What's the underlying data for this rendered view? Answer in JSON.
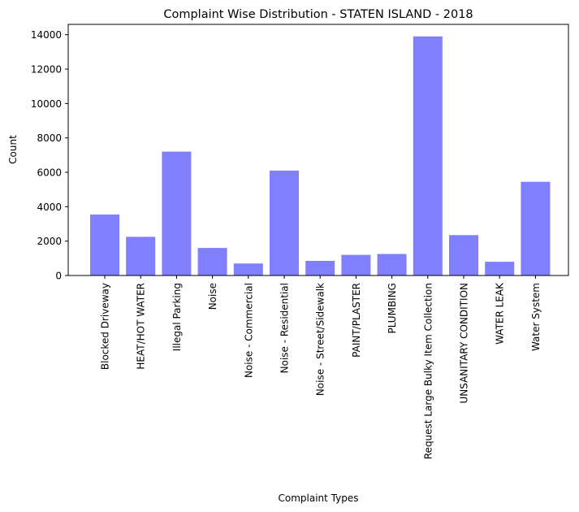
{
  "chart_data": {
    "type": "bar",
    "title": "Complaint Wise Distribution - STATEN ISLAND - 2018",
    "xlabel": "Complaint Types",
    "ylabel": "Count",
    "categories": [
      "Blocked Driveway",
      "HEAT/HOT WATER",
      "Illegal Parking",
      "Noise",
      "Noise - Commercial",
      "Noise - Residential",
      "Noise - Street/Sidewalk",
      "PAINT/PLASTER",
      "PLUMBING",
      "Request Large Bulky Item Collection",
      "UNSANITARY CONDITION",
      "WATER LEAK",
      "Water System"
    ],
    "values": [
      3550,
      2250,
      7200,
      1600,
      700,
      6100,
      850,
      1200,
      1250,
      13900,
      2350,
      800,
      5450
    ],
    "ylim": [
      0,
      14600
    ],
    "yticks": [
      0,
      2000,
      4000,
      6000,
      8000,
      10000,
      12000,
      14000
    ],
    "ytick_labels": [
      "0",
      "2000",
      "4000",
      "6000",
      "8000",
      "10000",
      "12000",
      "14000"
    ],
    "bar_color": "#8080ff",
    "grid": false,
    "legend": "none"
  }
}
